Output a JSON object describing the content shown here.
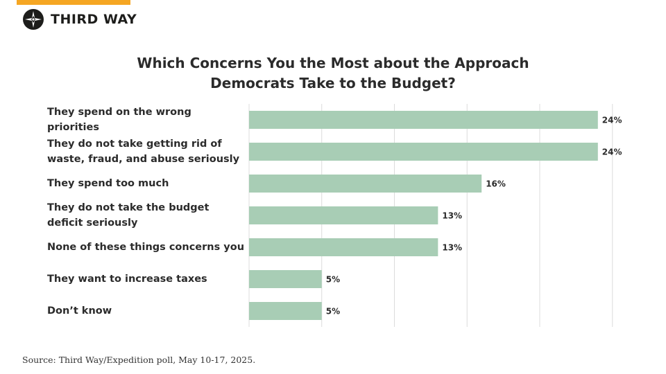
{
  "brand": {
    "name": "THIRD WAY",
    "accent_color": "#f5a623",
    "icon": "compass-star-icon"
  },
  "source": "Source: Third Way/Expedition poll, May 10-17, 2025.",
  "chart_data": {
    "type": "bar",
    "orientation": "horizontal",
    "title": "Which Concerns You the Most about the Approach Democrats Take to the Budget?",
    "title_lines": [
      "Which Concerns You the Most about the Approach",
      "Democrats Take to the Budget?"
    ],
    "categories": [
      [
        "They spend on the wrong priorities"
      ],
      [
        "They do not take getting rid of",
        "waste, fraud, and abuse seriously"
      ],
      [
        "They spend too much"
      ],
      [
        "They do not take the budget",
        "deficit seriously"
      ],
      [
        "None of these things concerns you"
      ],
      [
        "They want to increase taxes"
      ],
      [
        "Don’t know"
      ]
    ],
    "values": [
      24,
      24,
      16,
      13,
      13,
      5,
      5
    ],
    "value_labels": [
      "24%",
      "24%",
      "16%",
      "13%",
      "13%",
      "5%",
      "5%"
    ],
    "unit": "%",
    "xlim": [
      0,
      25
    ],
    "grid": true,
    "bar_color": "#a8cdb5",
    "grid_color": "#dcdcdc"
  }
}
